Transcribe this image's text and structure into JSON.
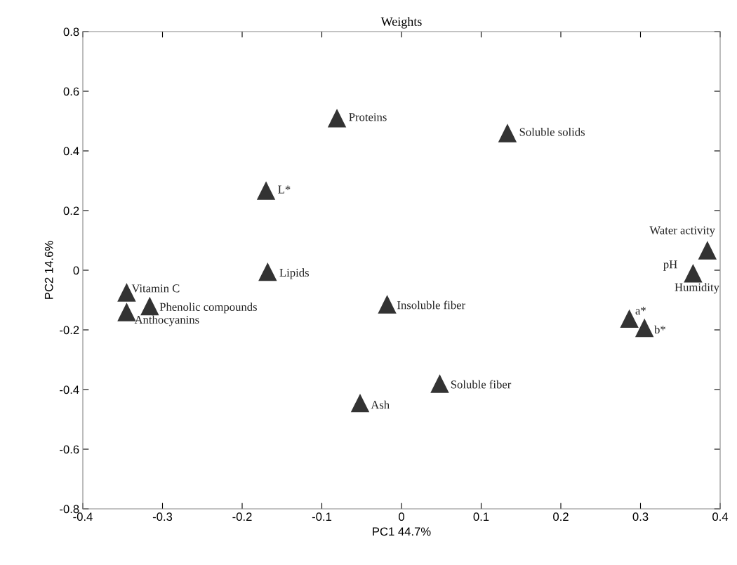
{
  "chart_data": {
    "type": "scatter",
    "title": "Weights",
    "xlabel": "PC1 44.7%",
    "ylabel": "PC2 14.6%",
    "marker": "triangle",
    "grid": false,
    "xlim": [
      -0.4,
      0.4
    ],
    "xticks": [
      -0.4,
      -0.3,
      -0.2,
      -0.1,
      0,
      0.1,
      0.2,
      0.3,
      0.4
    ],
    "ylim": [
      -0.8,
      0.8
    ],
    "yticks": [
      -0.8,
      -0.6,
      -0.4,
      -0.2,
      0,
      0.2,
      0.4,
      0.6,
      0.8
    ],
    "series": [
      {
        "color": "#333333",
        "x": [
          -0.081,
          0.133,
          -0.17,
          0.384,
          0.366,
          -0.168,
          -0.345,
          -0.316,
          -0.345,
          -0.018,
          0.286,
          0.305,
          0.048,
          -0.052
        ],
        "values": [
          0.51,
          0.46,
          0.267,
          0.067,
          -0.01,
          -0.005,
          -0.074,
          -0.12,
          -0.14,
          -0.114,
          -0.162,
          -0.193,
          -0.38,
          -0.445
        ]
      }
    ],
    "annotations": [
      {
        "text": "Proteins",
        "x": -0.081,
        "y": 0.51
      },
      {
        "text": "Soluble solids",
        "x": 0.133,
        "y": 0.46
      },
      {
        "text": "L*",
        "x": -0.17,
        "y": 0.267
      },
      {
        "text": "Water activity",
        "x": 0.384,
        "y": 0.067
      },
      {
        "text": "pH",
        "x": 0.366,
        "y": -0.01
      },
      {
        "text": "Humidity",
        "x": 0.366,
        "y": -0.01
      },
      {
        "text": "Lipids",
        "x": -0.168,
        "y": -0.005
      },
      {
        "text": "Vitamin C",
        "x": -0.345,
        "y": -0.074
      },
      {
        "text": "Phenolic compounds",
        "x": -0.316,
        "y": -0.12
      },
      {
        "text": "Anthocyanins",
        "x": -0.345,
        "y": -0.14
      },
      {
        "text": "Insoluble fiber",
        "x": -0.018,
        "y": -0.114
      },
      {
        "text": "a*",
        "x": 0.286,
        "y": -0.162
      },
      {
        "text": "b*",
        "x": 0.305,
        "y": -0.193
      },
      {
        "text": "Soluble fiber",
        "x": 0.048,
        "y": -0.38
      },
      {
        "text": "Ash",
        "x": -0.052,
        "y": -0.445
      }
    ]
  }
}
